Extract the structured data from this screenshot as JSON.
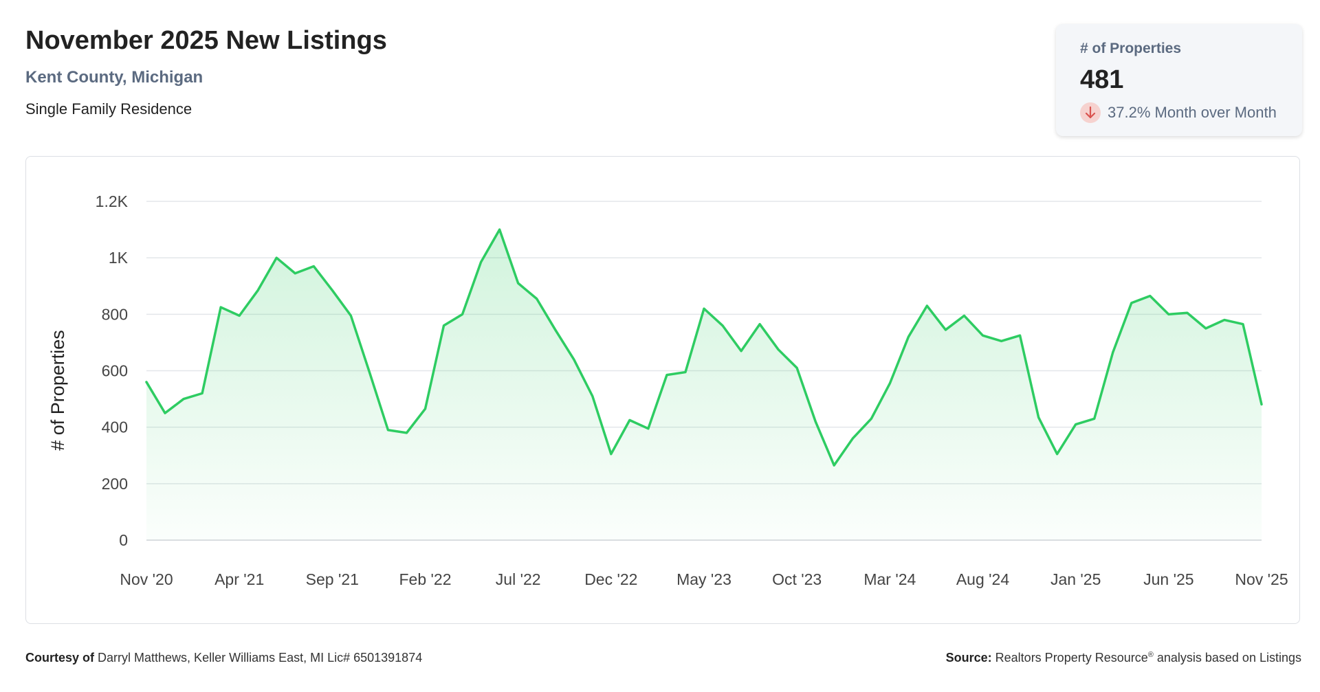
{
  "header": {
    "title": "November 2025 New Listings",
    "region": "Kent County, Michigan",
    "property_type": "Single Family Residence"
  },
  "stat_card": {
    "label": "# of Properties",
    "value": "481",
    "change_text": "37.2% Month over Month",
    "change_direction": "down",
    "change_icon": "arrow-down-icon",
    "change_color": "#d9534f",
    "change_bg": "#f6d2cf"
  },
  "chart_data": {
    "type": "area",
    "title": "",
    "xlabel": "",
    "ylabel": "# of Properties",
    "ylim": [
      0,
      1200
    ],
    "y_ticks": [
      0,
      200,
      400,
      600,
      800,
      1000,
      1200
    ],
    "y_tick_labels": [
      "0",
      "200",
      "400",
      "600",
      "800",
      "1K",
      "1.2K"
    ],
    "x_tick_labels": [
      "Nov '20",
      "Apr '21",
      "Sep '21",
      "Feb '22",
      "Jul '22",
      "Dec '22",
      "May '23",
      "Oct '23",
      "Mar '24",
      "Aug '24",
      "Jan '25",
      "Jun '25",
      "Nov '25"
    ],
    "x_tick_step_months": 5,
    "grid": true,
    "line_color": "#2ecc62",
    "fill_color": "#2ecc62",
    "series": [
      {
        "x": [
          "Nov '20",
          "Dec '20",
          "Jan '21",
          "Feb '21",
          "Mar '21",
          "Apr '21",
          "May '21",
          "Jun '21",
          "Jul '21",
          "Aug '21",
          "Sep '21",
          "Oct '21",
          "Nov '21",
          "Dec '21",
          "Jan '22",
          "Feb '22",
          "Mar '22",
          "Apr '22",
          "May '22",
          "Jun '22",
          "Jul '22",
          "Aug '22",
          "Sep '22",
          "Oct '22",
          "Nov '22",
          "Dec '22",
          "Jan '23",
          "Feb '23",
          "Mar '23",
          "Apr '23",
          "May '23",
          "Jun '23",
          "Jul '23",
          "Aug '23",
          "Sep '23",
          "Oct '23",
          "Nov '23",
          "Dec '23",
          "Jan '24",
          "Feb '24",
          "Mar '24",
          "Apr '24",
          "May '24",
          "Jun '24",
          "Jul '24",
          "Aug '24",
          "Sep '24",
          "Oct '24",
          "Nov '24",
          "Dec '24",
          "Jan '25",
          "Feb '25",
          "Mar '25",
          "Apr '25",
          "May '25",
          "Jun '25",
          "Jul '25",
          "Aug '25",
          "Sep '25",
          "Oct '25",
          "Nov '25"
        ],
        "values": [
          560,
          450,
          500,
          520,
          825,
          795,
          885,
          1000,
          945,
          970,
          885,
          795,
          595,
          390,
          380,
          465,
          760,
          800,
          985,
          1100,
          910,
          855,
          745,
          640,
          510,
          305,
          425,
          395,
          585,
          595,
          820,
          760,
          670,
          765,
          675,
          610,
          420,
          265,
          360,
          430,
          555,
          720,
          830,
          745,
          795,
          725,
          705,
          725,
          435,
          305,
          410,
          430,
          665,
          840,
          865,
          800,
          805,
          750,
          780,
          765,
          481
        ]
      }
    ]
  },
  "footer": {
    "courtesy_label": "Courtesy of",
    "courtesy_text": "Darryl Matthews, Keller Williams East, MI Lic# 6501391874",
    "source_label": "Source:",
    "source_text": "Realtors Property Resource",
    "source_sup": "®",
    "source_suffix": " analysis based on Listings"
  }
}
